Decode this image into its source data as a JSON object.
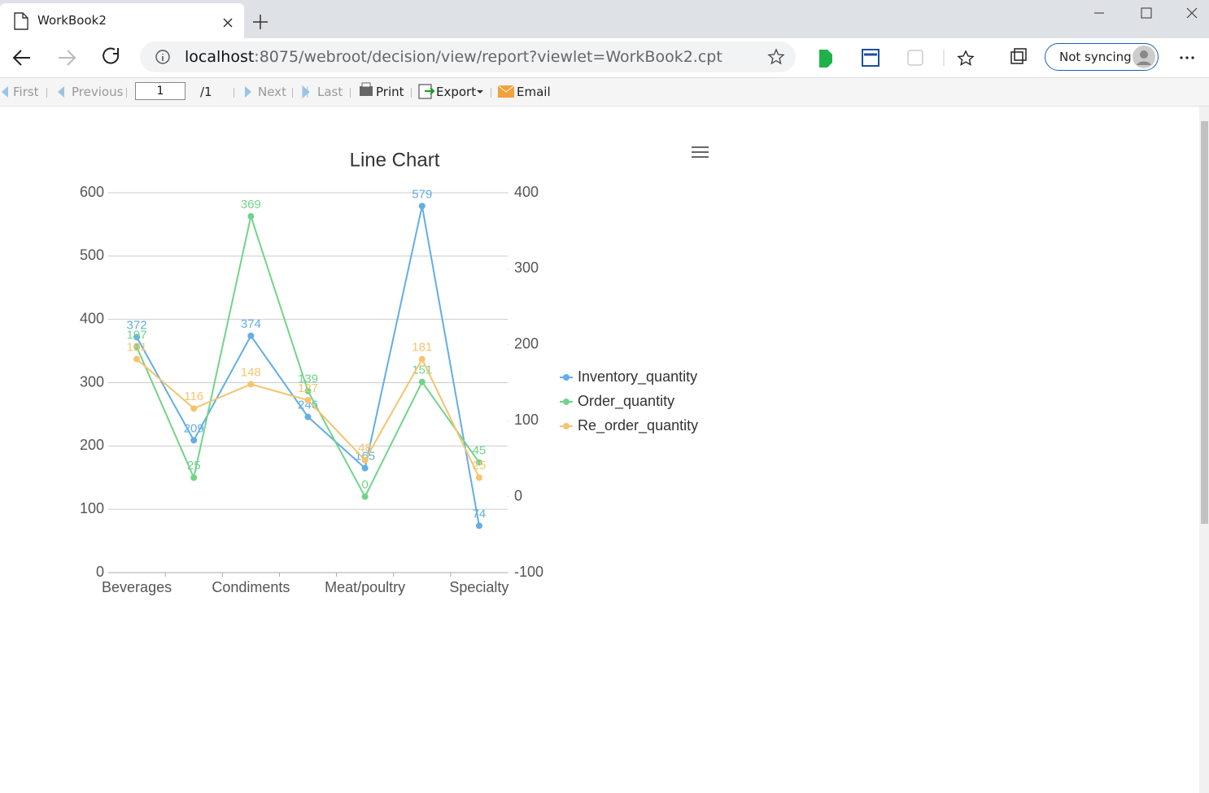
{
  "browser": {
    "tab_title": "WorkBook2",
    "url_host": "localhost",
    "url_rest": ":8075/webroot/decision/view/report?viewlet=WorkBook2.cpt",
    "sync": "Not syncing"
  },
  "toolbar": {
    "first": "First",
    "previous": "Previous",
    "page": "1",
    "page_total": "/1",
    "next": "Next",
    "last": "Last",
    "print": "Print",
    "export": "Export",
    "email": "Email"
  },
  "chart_data": {
    "type": "line",
    "title": "Line Chart",
    "categories": [
      "Beverages",
      null,
      "Condiments",
      null,
      "Meat/poultry",
      null,
      "Specialty"
    ],
    "series": [
      {
        "name": "Inventory_quantity",
        "color": "#62aee6",
        "axis": "y",
        "values": [
          372,
          209,
          374,
          246,
          165,
          579,
          74
        ]
      },
      {
        "name": "Order_quantity",
        "color": "#72d38a",
        "axis": "y2",
        "values": [
          197,
          25,
          369,
          139,
          0,
          151,
          45
        ]
      },
      {
        "name": "Re_order_quantity",
        "color": "#f4c46e",
        "axis": "y2",
        "values": [
          181,
          116,
          148,
          127,
          48,
          181,
          25
        ]
      }
    ],
    "ylim": [
      0,
      600
    ],
    "yticks": [
      0,
      100,
      200,
      300,
      400,
      500,
      600
    ],
    "y2lim": [
      -100,
      400
    ],
    "y2ticks": [
      -100,
      0,
      100,
      200,
      300,
      400
    ],
    "grid": true,
    "legend": "right"
  }
}
